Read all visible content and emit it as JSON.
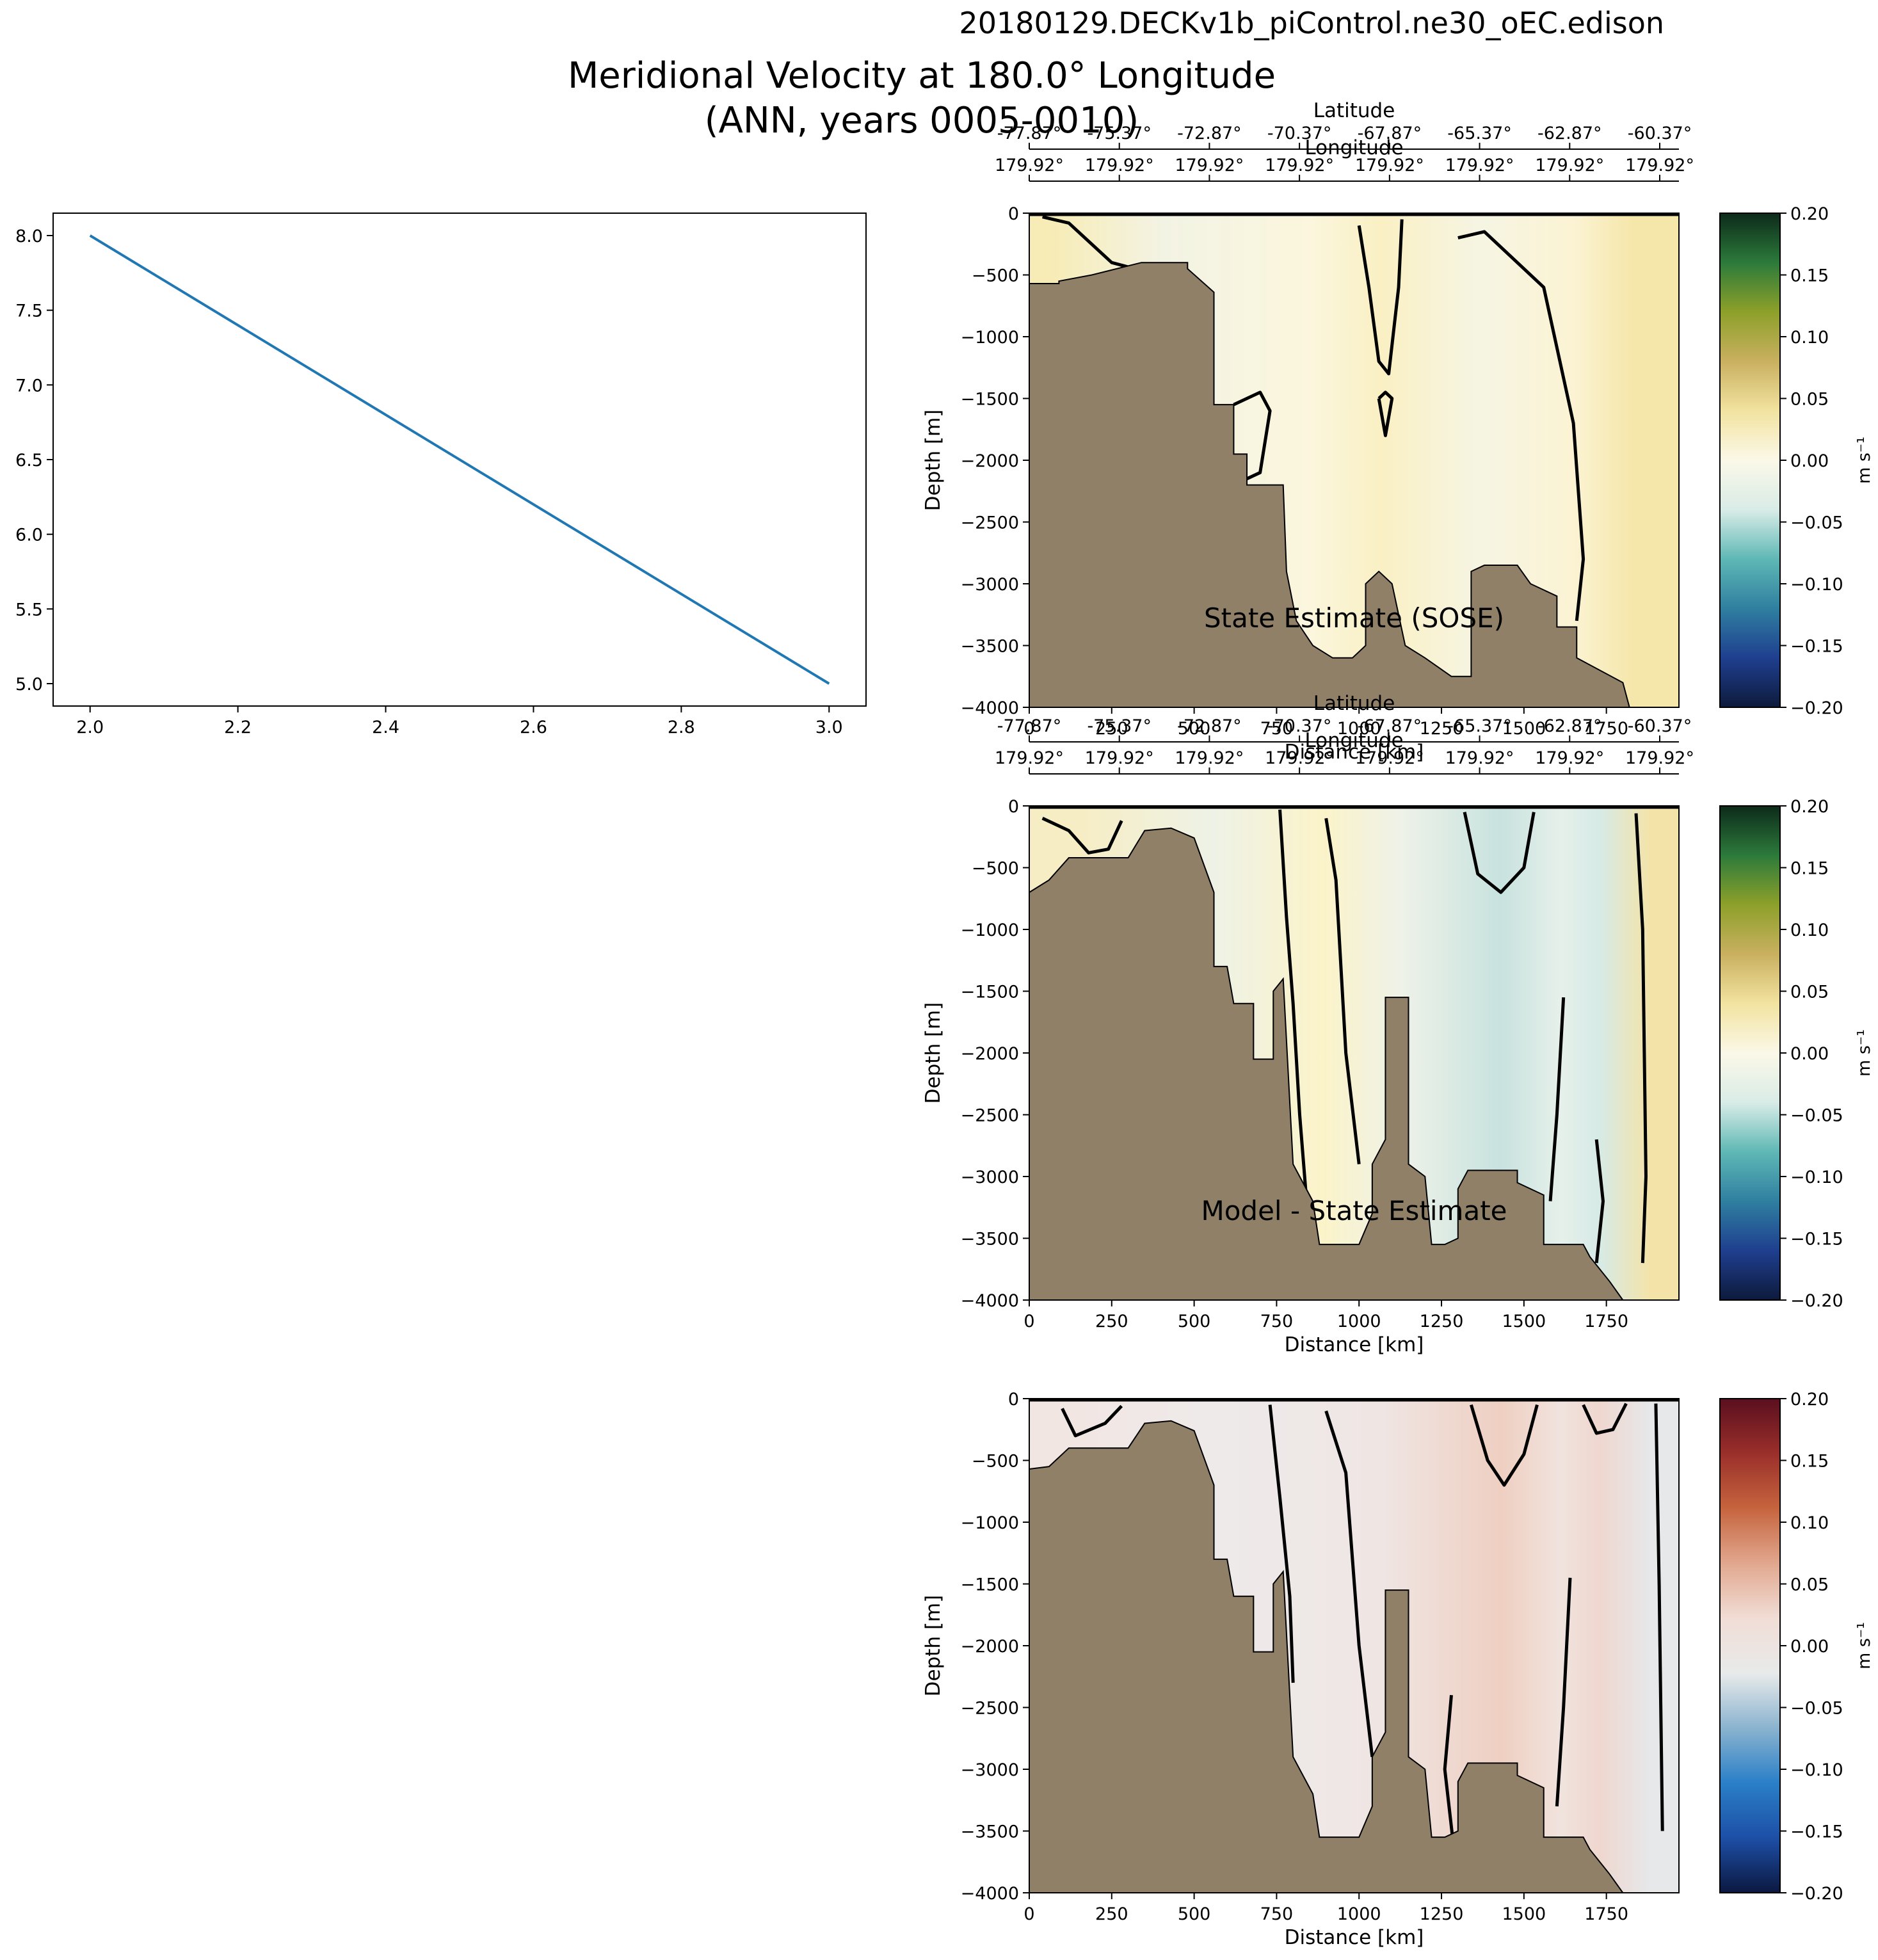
{
  "figure": {
    "run_name": "20180129.DECKv1b_piControl.ne30_oEC.edison",
    "title_line1": "Meridional Velocity at 180.0° Longitude",
    "title_line2": "(ANN, years 0005-0010)"
  },
  "chart_data": [
    {
      "type": "line",
      "title": "",
      "xlabel": "",
      "ylabel": "",
      "x": [
        2.0,
        3.0
      ],
      "y": [
        8.0,
        5.0
      ],
      "xlim": [
        1.95,
        3.05
      ],
      "ylim": [
        4.85,
        8.15
      ],
      "xticks": [
        "2.0",
        "2.2",
        "2.4",
        "2.6",
        "2.8",
        "3.0"
      ],
      "yticks": [
        "5.0",
        "5.5",
        "6.0",
        "6.5",
        "7.0",
        "7.5",
        "8.0"
      ],
      "color": "#1f77b4"
    },
    {
      "type": "heatmap",
      "label": "State Estimate (SOSE)",
      "xlabel": "Distance [km]",
      "ylabel": "Depth [m]",
      "top_axis_label_lat": "Latitude",
      "top_axis_label_lon": "Longitude",
      "xticks": [
        "0",
        "250",
        "500",
        "750",
        "1000",
        "1250",
        "1500",
        "1750"
      ],
      "yticks": [
        "0",
        "−500",
        "−1000",
        "−1500",
        "−2000",
        "−2500",
        "−3000",
        "−3500",
        "−4000"
      ],
      "lat_ticks": [
        "-77.87°",
        "-75.37°",
        "-72.87°",
        "-70.37°",
        "-67.87°",
        "-65.37°",
        "-62.87°",
        "-60.37°"
      ],
      "lon_ticks": [
        "179.92°",
        "179.92°",
        "179.92°",
        "179.92°",
        "179.92°",
        "179.92°",
        "179.92°",
        "179.92°"
      ],
      "xlim": [
        0,
        1970
      ],
      "ylim": [
        -4000,
        0
      ],
      "colorbar_label": "m s⁻¹",
      "colorbar_ticks": [
        "0.20",
        "0.15",
        "0.10",
        "0.05",
        "0.00",
        "−0.05",
        "−0.10",
        "−0.15",
        "−0.20"
      ],
      "colormap": [
        "#0d1a3b",
        "#1f3f8f",
        "#2f7fa0",
        "#5fb8b5",
        "#d9ece7",
        "#fbf8e8",
        "#f2e3a0",
        "#c9b060",
        "#8da02a",
        "#2c7a3b",
        "#0d2a1a"
      ],
      "field": [
        {
          "x0": 0,
          "x1": 120,
          "color": "#f7ecb5"
        },
        {
          "x0": 120,
          "x1": 700,
          "color": "#f3f3e4"
        },
        {
          "x0": 700,
          "x1": 1000,
          "color": "#fbf6dd"
        },
        {
          "x0": 1000,
          "x1": 1130,
          "color": "#faf0c4"
        },
        {
          "x0": 1130,
          "x1": 1600,
          "color": "#f6f5e3"
        },
        {
          "x0": 1600,
          "x1": 1700,
          "color": "#fbf3d3"
        },
        {
          "x0": 1700,
          "x1": 1970,
          "color": "#f5e6a9"
        }
      ],
      "bathymetry": [
        [
          0,
          -570
        ],
        [
          90,
          -570
        ],
        [
          90,
          -550
        ],
        [
          190,
          -500
        ],
        [
          340,
          -400
        ],
        [
          480,
          -400
        ],
        [
          480,
          -450
        ],
        [
          560,
          -640
        ],
        [
          560,
          -1550
        ],
        [
          620,
          -1550
        ],
        [
          620,
          -1950
        ],
        [
          660,
          -1950
        ],
        [
          660,
          -2200
        ],
        [
          770,
          -2200
        ],
        [
          780,
          -2900
        ],
        [
          810,
          -3300
        ],
        [
          860,
          -3500
        ],
        [
          920,
          -3600
        ],
        [
          980,
          -3600
        ],
        [
          1020,
          -3500
        ],
        [
          1020,
          -3000
        ],
        [
          1060,
          -2900
        ],
        [
          1100,
          -3000
        ],
        [
          1140,
          -3500
        ],
        [
          1200,
          -3600
        ],
        [
          1280,
          -3750
        ],
        [
          1340,
          -3750
        ],
        [
          1340,
          -2900
        ],
        [
          1380,
          -2850
        ],
        [
          1480,
          -2850
        ],
        [
          1520,
          -3000
        ],
        [
          1600,
          -3100
        ],
        [
          1600,
          -3350
        ],
        [
          1660,
          -3350
        ],
        [
          1660,
          -3600
        ],
        [
          1800,
          -3800
        ],
        [
          1820,
          -4000
        ],
        [
          0,
          -4000
        ]
      ],
      "contours": [
        [
          [
            40,
            -30
          ],
          [
            120,
            -80
          ],
          [
            250,
            -400
          ],
          [
            320,
            -450
          ]
        ],
        [
          [
            1000,
            -100
          ],
          [
            1030,
            -600
          ],
          [
            1060,
            -1200
          ],
          [
            1090,
            -1300
          ],
          [
            1120,
            -600
          ],
          [
            1130,
            -50
          ]
        ],
        [
          [
            1060,
            -1500
          ],
          [
            1080,
            -1800
          ],
          [
            1100,
            -1500
          ],
          [
            1080,
            -1450
          ],
          [
            1060,
            -1500
          ]
        ],
        [
          [
            1300,
            -200
          ],
          [
            1380,
            -150
          ],
          [
            1560,
            -600
          ],
          [
            1650,
            -1700
          ],
          [
            1680,
            -2800
          ],
          [
            1660,
            -3300
          ]
        ],
        [
          [
            620,
            -1550
          ],
          [
            700,
            -1450
          ],
          [
            730,
            -1600
          ],
          [
            700,
            -2100
          ],
          [
            660,
            -2150
          ]
        ]
      ]
    },
    {
      "type": "heatmap",
      "label": "Model - State Estimate",
      "xlabel": "Distance [km]",
      "ylabel": "Depth [m]",
      "top_axis_label_lat": "Latitude",
      "top_axis_label_lon": "Longitude",
      "xticks": [
        "0",
        "250",
        "500",
        "750",
        "1000",
        "1250",
        "1500",
        "1750"
      ],
      "yticks": [
        "0",
        "−500",
        "−1000",
        "−1500",
        "−2000",
        "−2500",
        "−3000",
        "−3500",
        "−4000"
      ],
      "lat_ticks": [
        "-77.87°",
        "-75.37°",
        "-72.87°",
        "-70.37°",
        "-67.87°",
        "-65.37°",
        "-62.87°",
        "-60.37°"
      ],
      "lon_ticks": [
        "179.92°",
        "179.92°",
        "179.92°",
        "179.92°",
        "179.92°",
        "179.92°",
        "179.92°",
        "179.92°"
      ],
      "xlim": [
        0,
        1970
      ],
      "ylim": [
        -4000,
        0
      ],
      "colorbar_label": "m s⁻¹",
      "colorbar_ticks": [
        "0.20",
        "0.15",
        "0.10",
        "0.05",
        "0.00",
        "−0.05",
        "−0.10",
        "−0.15",
        "−0.20"
      ],
      "colormap": [
        "#0d1a3b",
        "#1f3f8f",
        "#2f7fa0",
        "#5fb8b5",
        "#d9ece7",
        "#fbf8e8",
        "#f2e3a0",
        "#c9b060",
        "#8da02a",
        "#2c7a3b",
        "#0d2a1a"
      ],
      "field": [
        {
          "x0": 0,
          "x1": 300,
          "color": "#f6edc4"
        },
        {
          "x0": 300,
          "x1": 820,
          "color": "#eef2e6"
        },
        {
          "x0": 820,
          "x1": 960,
          "color": "#fbf3c9"
        },
        {
          "x0": 960,
          "x1": 1300,
          "color": "#eef2e8"
        },
        {
          "x0": 1300,
          "x1": 1560,
          "color": "#c8e2df"
        },
        {
          "x0": 1560,
          "x1": 1660,
          "color": "#e6f0ea"
        },
        {
          "x0": 1660,
          "x1": 1800,
          "color": "#d6eae6"
        },
        {
          "x0": 1800,
          "x1": 1970,
          "color": "#f4e3a8"
        }
      ],
      "bathymetry": [
        [
          0,
          -700
        ],
        [
          60,
          -600
        ],
        [
          120,
          -420
        ],
        [
          300,
          -420
        ],
        [
          350,
          -200
        ],
        [
          430,
          -180
        ],
        [
          500,
          -260
        ],
        [
          560,
          -700
        ],
        [
          560,
          -1300
        ],
        [
          600,
          -1300
        ],
        [
          620,
          -1600
        ],
        [
          680,
          -1600
        ],
        [
          680,
          -2050
        ],
        [
          740,
          -2050
        ],
        [
          740,
          -1500
        ],
        [
          770,
          -1400
        ],
        [
          800,
          -2900
        ],
        [
          860,
          -3200
        ],
        [
          880,
          -3550
        ],
        [
          1000,
          -3550
        ],
        [
          1040,
          -3300
        ],
        [
          1040,
          -2900
        ],
        [
          1080,
          -2700
        ],
        [
          1080,
          -1550
        ],
        [
          1150,
          -1550
        ],
        [
          1150,
          -2900
        ],
        [
          1200,
          -3000
        ],
        [
          1220,
          -3550
        ],
        [
          1260,
          -3550
        ],
        [
          1300,
          -3500
        ],
        [
          1300,
          -3100
        ],
        [
          1330,
          -2950
        ],
        [
          1480,
          -2950
        ],
        [
          1480,
          -3050
        ],
        [
          1560,
          -3150
        ],
        [
          1560,
          -3550
        ],
        [
          1680,
          -3550
        ],
        [
          1700,
          -3650
        ],
        [
          1760,
          -3850
        ],
        [
          1800,
          -4000
        ],
        [
          0,
          -4000
        ]
      ],
      "contours": [
        [
          [
            40,
            -100
          ],
          [
            120,
            -200
          ],
          [
            180,
            -380
          ],
          [
            240,
            -350
          ],
          [
            280,
            -120
          ]
        ],
        [
          [
            760,
            -30
          ],
          [
            780,
            -900
          ],
          [
            800,
            -1600
          ],
          [
            820,
            -2500
          ],
          [
            850,
            -3500
          ]
        ],
        [
          [
            900,
            -100
          ],
          [
            930,
            -600
          ],
          [
            960,
            -2000
          ],
          [
            1000,
            -2900
          ]
        ],
        [
          [
            1320,
            -50
          ],
          [
            1360,
            -550
          ],
          [
            1430,
            -700
          ],
          [
            1500,
            -500
          ],
          [
            1530,
            -50
          ]
        ],
        [
          [
            1620,
            -1550
          ],
          [
            1600,
            -2500
          ],
          [
            1580,
            -3200
          ]
        ],
        [
          [
            1720,
            -2700
          ],
          [
            1740,
            -3200
          ],
          [
            1720,
            -3700
          ]
        ],
        [
          [
            1840,
            -60
          ],
          [
            1860,
            -1000
          ],
          [
            1870,
            -3000
          ],
          [
            1860,
            -3700
          ]
        ]
      ]
    },
    {
      "type": "heatmap",
      "label": "",
      "xlabel": "Distance [km]",
      "ylabel": "Depth [m]",
      "xticks": [
        "0",
        "250",
        "500",
        "750",
        "1000",
        "1250",
        "1500",
        "1750"
      ],
      "yticks": [
        "0",
        "−500",
        "−1000",
        "−1500",
        "−2000",
        "−2500",
        "−3000",
        "−3500",
        "−4000"
      ],
      "xlim": [
        0,
        1970
      ],
      "ylim": [
        -4000,
        0
      ],
      "colorbar_label": "m s⁻¹",
      "colorbar_ticks": [
        "0.20",
        "0.15",
        "0.10",
        "0.05",
        "0.00",
        "−0.05",
        "−0.10",
        "−0.15",
        "−0.20"
      ],
      "colormap": [
        "#0b1840",
        "#1d4fa6",
        "#2a7fc8",
        "#8ab3cf",
        "#e8eaea",
        "#f1ddd6",
        "#e1a78e",
        "#c6643e",
        "#9a2f2a",
        "#5a0f1f"
      ],
      "field": [
        {
          "x0": 0,
          "x1": 300,
          "color": "#f2e6e3"
        },
        {
          "x0": 300,
          "x1": 820,
          "color": "#eeeaea"
        },
        {
          "x0": 820,
          "x1": 1300,
          "color": "#efe6e4"
        },
        {
          "x0": 1300,
          "x1": 1560,
          "color": "#efcfc2"
        },
        {
          "x0": 1560,
          "x1": 1660,
          "color": "#f0e3dd"
        },
        {
          "x0": 1660,
          "x1": 1800,
          "color": "#efd7cf"
        },
        {
          "x0": 1800,
          "x1": 1970,
          "color": "#e6e8ea"
        }
      ],
      "bathymetry": [
        [
          0,
          -570
        ],
        [
          60,
          -550
        ],
        [
          120,
          -400
        ],
        [
          300,
          -400
        ],
        [
          350,
          -200
        ],
        [
          430,
          -180
        ],
        [
          500,
          -260
        ],
        [
          560,
          -700
        ],
        [
          560,
          -1300
        ],
        [
          600,
          -1300
        ],
        [
          620,
          -1600
        ],
        [
          680,
          -1600
        ],
        [
          680,
          -2050
        ],
        [
          740,
          -2050
        ],
        [
          740,
          -1500
        ],
        [
          770,
          -1400
        ],
        [
          800,
          -2900
        ],
        [
          860,
          -3200
        ],
        [
          880,
          -3550
        ],
        [
          1000,
          -3550
        ],
        [
          1040,
          -3300
        ],
        [
          1040,
          -2900
        ],
        [
          1080,
          -2700
        ],
        [
          1080,
          -1550
        ],
        [
          1150,
          -1550
        ],
        [
          1150,
          -2900
        ],
        [
          1200,
          -3000
        ],
        [
          1220,
          -3550
        ],
        [
          1260,
          -3550
        ],
        [
          1300,
          -3500
        ],
        [
          1300,
          -3100
        ],
        [
          1330,
          -2950
        ],
        [
          1480,
          -2950
        ],
        [
          1480,
          -3050
        ],
        [
          1560,
          -3150
        ],
        [
          1560,
          -3550
        ],
        [
          1680,
          -3550
        ],
        [
          1700,
          -3650
        ],
        [
          1760,
          -3850
        ],
        [
          1800,
          -4000
        ],
        [
          0,
          -4000
        ]
      ],
      "contours": [
        [
          [
            100,
            -80
          ],
          [
            140,
            -300
          ],
          [
            230,
            -200
          ],
          [
            280,
            -60
          ]
        ],
        [
          [
            730,
            -50
          ],
          [
            760,
            -800
          ],
          [
            790,
            -1600
          ],
          [
            800,
            -2300
          ]
        ],
        [
          [
            900,
            -100
          ],
          [
            960,
            -600
          ],
          [
            1000,
            -2000
          ],
          [
            1040,
            -2900
          ]
        ],
        [
          [
            1340,
            -50
          ],
          [
            1390,
            -500
          ],
          [
            1440,
            -700
          ],
          [
            1500,
            -450
          ],
          [
            1540,
            -50
          ]
        ],
        [
          [
            1640,
            -1450
          ],
          [
            1620,
            -2500
          ],
          [
            1600,
            -3300
          ]
        ],
        [
          [
            1680,
            -50
          ],
          [
            1720,
            -280
          ],
          [
            1770,
            -250
          ],
          [
            1810,
            -40
          ]
        ],
        [
          [
            1280,
            -2400
          ],
          [
            1260,
            -3000
          ],
          [
            1290,
            -3700
          ]
        ],
        [
          [
            1900,
            -40
          ],
          [
            1910,
            -1500
          ],
          [
            1920,
            -3500
          ]
        ]
      ]
    }
  ]
}
